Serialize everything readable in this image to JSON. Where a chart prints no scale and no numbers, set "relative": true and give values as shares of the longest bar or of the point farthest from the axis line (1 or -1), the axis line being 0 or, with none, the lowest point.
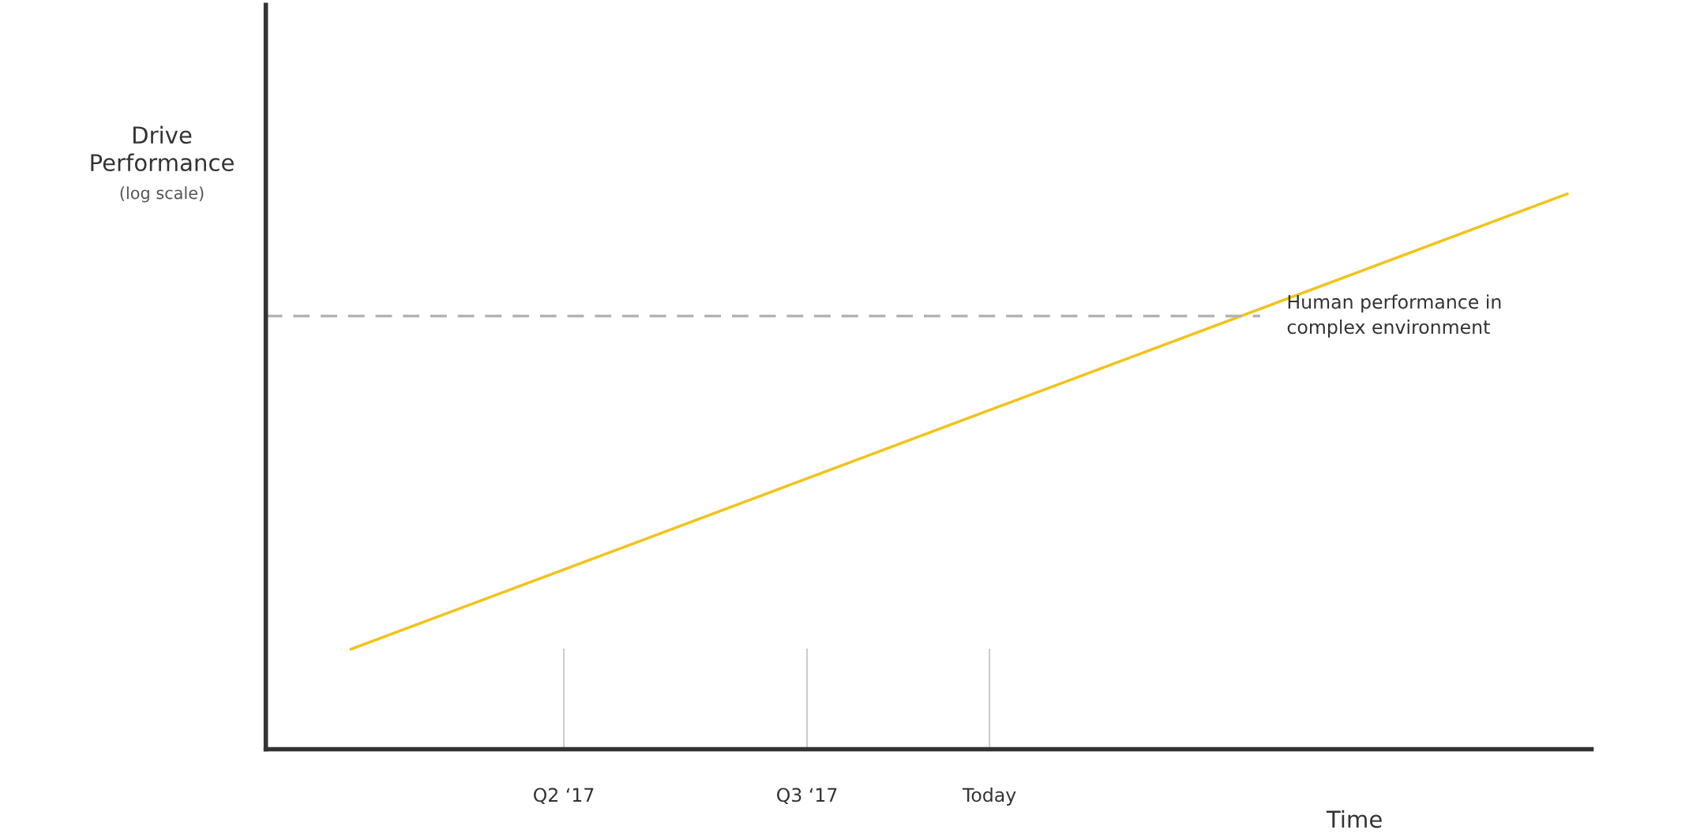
{
  "chart_data": {
    "type": "line",
    "relative": true,
    "ylabel": "Drive\nPerformance",
    "xlabel": "Time",
    "annotations": [
      "(log scale)"
    ],
    "categories": [
      null,
      null,
      null,
      null,
      null,
      null,
      null,
      "Q2 ‘17",
      null,
      null,
      null,
      null,
      null,
      null,
      null,
      "Q3 ‘17",
      null,
      null,
      null,
      null,
      null,
      "Today",
      null,
      null,
      null,
      null,
      null,
      null,
      null,
      null,
      null,
      null,
      null,
      null,
      null,
      null,
      null,
      null,
      null,
      null,
      null
    ],
    "series": [
      {
        "color": "#f2c21b",
        "values": [
          0.18,
          null,
          null,
          null,
          null,
          null,
          null,
          null,
          null,
          null,
          null,
          null,
          null,
          null,
          null,
          null,
          null,
          null,
          null,
          null,
          null,
          null,
          null,
          null,
          null,
          null,
          null,
          null,
          null,
          null,
          null,
          null,
          null,
          null,
          null,
          null,
          null,
          null,
          null,
          null,
          1.0
        ]
      }
    ],
    "ref_lines": [
      {
        "axis": "y",
        "value": 0.78,
        "label": "Human performance in\ncomplex environment",
        "color": "#b3b3b3",
        "line_style": "dashed"
      },
      {
        "axis": "x",
        "value": "Q2 ‘17",
        "color": "#cccccc",
        "line_style": "solid"
      },
      {
        "axis": "x",
        "value": "Q3 ‘17",
        "color": "#cccccc",
        "line_style": "solid"
      },
      {
        "axis": "x",
        "value": "Today",
        "color": "#cccccc",
        "line_style": "solid"
      }
    ],
    "grid": false,
    "legend": false
  }
}
